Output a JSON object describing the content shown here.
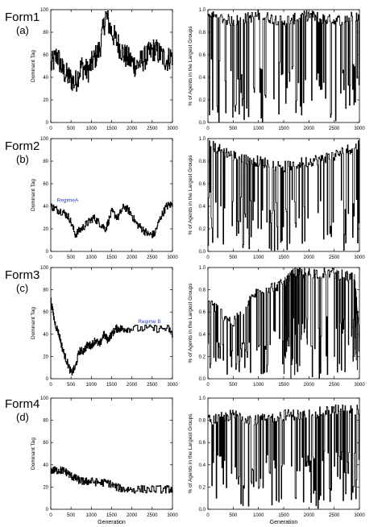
{
  "figure": {
    "panels_label": [
      "Form1",
      "Form2",
      "Form3",
      "Form4"
    ],
    "panels_sub": [
      "(a)",
      "(b)",
      "(c)",
      "(d)"
    ]
  },
  "chart_data": [
    {
      "id": "form1-left",
      "type": "line",
      "row": 0,
      "col": 0,
      "ylabel": "Dominant Tag",
      "xlabel": "",
      "xlim": [
        0,
        3000
      ],
      "ylim": [
        0,
        100
      ],
      "xticks": [
        0,
        500,
        1000,
        1500,
        2000,
        2500,
        3000
      ],
      "yticks": [
        0,
        20,
        40,
        60,
        80,
        100
      ],
      "xtick_labels": [
        "0",
        "500",
        "1000",
        "1500",
        "2000",
        "2500",
        "3000"
      ],
      "ytick_labels": [
        "0",
        "20",
        "40",
        "60",
        "80",
        "100"
      ],
      "series": [
        {
          "x": [
            0,
            150,
            300,
            450,
            600,
            750,
            900,
            1050,
            1200,
            1350,
            1500,
            1650,
            1800,
            1950,
            2100,
            2250,
            2400,
            2550,
            2700,
            2850,
            3000
          ],
          "y": [
            50,
            60,
            45,
            40,
            35,
            50,
            45,
            55,
            65,
            95,
            80,
            70,
            60,
            55,
            50,
            55,
            60,
            65,
            60,
            55,
            60
          ]
        }
      ]
    },
    {
      "id": "form1-right",
      "type": "line",
      "row": 0,
      "col": 1,
      "ylabel": "% of Agents in the Largest Groups",
      "xlabel": "",
      "xlim": [
        0,
        3000
      ],
      "ylim": [
        0,
        1
      ],
      "xticks": [
        0,
        500,
        1000,
        1500,
        2000,
        2500,
        3000
      ],
      "yticks": [
        0,
        0.2,
        0.4,
        0.6,
        0.8,
        1
      ],
      "xtick_labels": [
        "0",
        "500",
        "1000",
        "1500",
        "2000",
        "2500",
        "3000"
      ],
      "ytick_labels": [
        "0.0",
        "0.2",
        "0.4",
        "0.6",
        "0.8",
        "1.0"
      ],
      "series": [
        {
          "x": [
            0,
            500,
            1000,
            1500,
            2000,
            2500,
            3000
          ],
          "y": [
            0.95,
            0.9,
            0.95,
            0.9,
            0.95,
            0.9,
            0.95
          ]
        }
      ]
    },
    {
      "id": "form2-left",
      "type": "line",
      "row": 1,
      "col": 0,
      "ylabel": "Dominant Tag",
      "xlabel": "",
      "xlim": [
        0,
        3000
      ],
      "ylim": [
        0,
        100
      ],
      "xticks": [
        0,
        500,
        1000,
        1500,
        2000,
        2500,
        3000
      ],
      "yticks": [
        0,
        20,
        40,
        60,
        80,
        100
      ],
      "xtick_labels": [
        "0",
        "500",
        "1000",
        "1500",
        "2000",
        "2500",
        "3000"
      ],
      "ytick_labels": [
        "0",
        "20",
        "40",
        "60",
        "80",
        "100"
      ],
      "annotation": {
        "text": "RegimeA",
        "x": 150,
        "y": 44
      },
      "series": [
        {
          "x": [
            0,
            150,
            300,
            450,
            600,
            750,
            900,
            1050,
            1200,
            1350,
            1500,
            1650,
            1800,
            1950,
            2100,
            2250,
            2400,
            2550,
            2700,
            2850,
            3000
          ],
          "y": [
            40,
            37,
            35,
            30,
            15,
            20,
            25,
            30,
            25,
            20,
            35,
            30,
            40,
            35,
            25,
            20,
            15,
            15,
            30,
            40,
            42
          ]
        }
      ]
    },
    {
      "id": "form2-right",
      "type": "line",
      "row": 1,
      "col": 1,
      "ylabel": "% of Agents in the Largest Groups",
      "xlabel": "",
      "xlim": [
        0,
        3000
      ],
      "ylim": [
        0,
        1
      ],
      "xticks": [
        0,
        500,
        1000,
        1500,
        2000,
        2500,
        3000
      ],
      "yticks": [
        0,
        0.2,
        0.4,
        0.6,
        0.8,
        1
      ],
      "xtick_labels": [
        "0",
        "500",
        "1000",
        "1500",
        "2000",
        "2500",
        "3000"
      ],
      "ytick_labels": [
        "0.0",
        "0.2",
        "0.4",
        "0.6",
        "0.8",
        "1.0"
      ],
      "series": [
        {
          "x": [
            0,
            500,
            1000,
            1500,
            2000,
            2500,
            3000
          ],
          "y": [
            0.95,
            0.85,
            0.8,
            0.75,
            0.8,
            0.85,
            0.95
          ]
        }
      ]
    },
    {
      "id": "form3-left",
      "type": "line",
      "row": 2,
      "col": 0,
      "ylabel": "Dominant Tag",
      "xlabel": "",
      "xlim": [
        0,
        3000
      ],
      "ylim": [
        0,
        100
      ],
      "xticks": [
        0,
        500,
        1000,
        1500,
        2000,
        2500,
        3000
      ],
      "yticks": [
        0,
        20,
        40,
        60,
        80,
        100
      ],
      "xtick_labels": [
        "0",
        "500",
        "1000",
        "1500",
        "2000",
        "2500",
        "3000"
      ],
      "ytick_labels": [
        "0",
        "20",
        "40",
        "60",
        "80",
        "100"
      ],
      "annotation": {
        "text": "Regime B",
        "x": 2150,
        "y": 50
      },
      "series": [
        {
          "x": [
            0,
            100,
            200,
            300,
            400,
            500,
            600,
            700,
            800,
            900,
            1000,
            1100,
            1200,
            1300,
            1400,
            1500,
            1600,
            1700,
            1800,
            2000,
            2500,
            2900,
            3000
          ],
          "y": [
            70,
            50,
            40,
            25,
            15,
            5,
            10,
            25,
            25,
            30,
            30,
            35,
            30,
            40,
            35,
            40,
            45,
            45,
            45,
            45,
            45,
            45,
            40
          ]
        }
      ]
    },
    {
      "id": "form3-right",
      "type": "line",
      "row": 2,
      "col": 1,
      "ylabel": "% of Agents in the Largest Groups",
      "xlabel": "",
      "xlim": [
        0,
        3000
      ],
      "ylim": [
        0,
        1
      ],
      "xticks": [
        0,
        500,
        1000,
        1500,
        2000,
        2500,
        3000
      ],
      "yticks": [
        0,
        0.2,
        0.4,
        0.6,
        0.8,
        1
      ],
      "xtick_labels": [
        "0",
        "500",
        "1000",
        "1500",
        "2000",
        "2500",
        "3000"
      ],
      "ytick_labels": [
        "0.0",
        "0.2",
        "0.4",
        "0.6",
        "0.8",
        "1.0"
      ],
      "series": [
        {
          "x": [
            0,
            500,
            1000,
            1500,
            1700,
            2000,
            2500,
            2900,
            3000
          ],
          "y": [
            0.7,
            0.5,
            0.8,
            0.85,
            0.95,
            0.95,
            0.95,
            0.9,
            0.4
          ]
        }
      ]
    },
    {
      "id": "form4-left",
      "type": "line",
      "row": 3,
      "col": 0,
      "ylabel": "Dominant Tag",
      "xlabel": "Generation",
      "xlim": [
        0,
        3000
      ],
      "ylim": [
        0,
        100
      ],
      "xticks": [
        0,
        500,
        1000,
        1500,
        2000,
        2500,
        3000
      ],
      "yticks": [
        0,
        20,
        40,
        60,
        80,
        100
      ],
      "xtick_labels": [
        "0",
        "500",
        "1000",
        "1500",
        "2000",
        "2500",
        "3000"
      ],
      "ytick_labels": [
        "0",
        "20",
        "40",
        "60",
        "80",
        "100"
      ],
      "series": [
        {
          "x": [
            0,
            100,
            200,
            300,
            400,
            500,
            600,
            700,
            800,
            900,
            1000,
            1200,
            1400,
            1600,
            1800,
            2000,
            2400,
            2800,
            3000
          ],
          "y": [
            35,
            35,
            35,
            35,
            33,
            30,
            28,
            26,
            25,
            25,
            25,
            24,
            24,
            20,
            18,
            18,
            18,
            18,
            18
          ]
        }
      ]
    },
    {
      "id": "form4-right",
      "type": "line",
      "row": 3,
      "col": 1,
      "ylabel": "% of Agents in the Largest Groups",
      "xlabel": "Generation",
      "xlim": [
        0,
        3000
      ],
      "ylim": [
        0,
        1
      ],
      "xticks": [
        0,
        500,
        1000,
        1500,
        2000,
        2500,
        3000
      ],
      "yticks": [
        0,
        0.2,
        0.4,
        0.6,
        0.8,
        1
      ],
      "xtick_labels": [
        "0",
        "500",
        "1000",
        "1500",
        "2000",
        "2500",
        "3000"
      ],
      "ytick_labels": [
        "0.0",
        "0.2",
        "0.4",
        "0.6",
        "0.8",
        "1.0"
      ],
      "series": [
        {
          "x": [
            0,
            500,
            1000,
            1500,
            2000,
            2500,
            3000
          ],
          "y": [
            0.8,
            0.85,
            0.8,
            0.85,
            0.85,
            0.9,
            0.9
          ]
        }
      ]
    }
  ]
}
